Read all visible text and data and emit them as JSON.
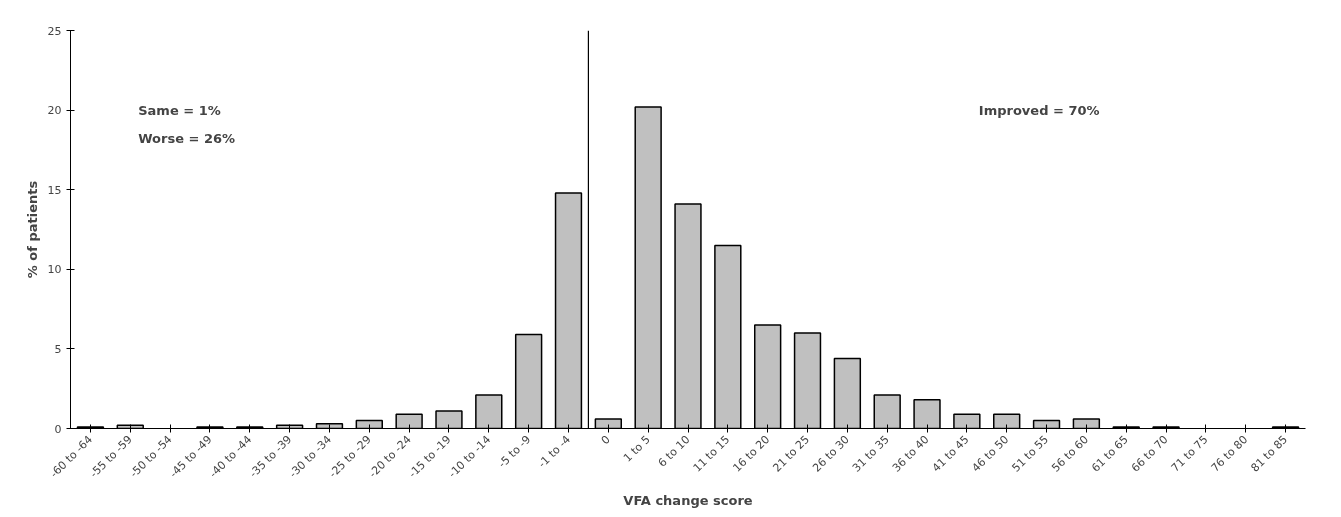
{
  "chart_data": {
    "type": "bar",
    "xlabel": "VFA change score",
    "ylabel": "% of patients",
    "categories": [
      "-60 to -64",
      "-55 to -59",
      "-50 to -54",
      "-45 to -49",
      "-40 to -44",
      "-35 to -39",
      "-30 to -34",
      "-25 to -29",
      "-20 to -24",
      "-15 to -19",
      "-10 to -14",
      "-5 to -9",
      "-1 to -4",
      "0",
      "1 to 5",
      "6 to 10",
      "11 to 15",
      "16 to 20",
      "21 to 25",
      "26 to 30",
      "31 to 35",
      "36 to 40",
      "41 to 45",
      "46 to 50",
      "51 to 55",
      "56 to 60",
      "61 to 65",
      "66 to 70",
      "71 to 75",
      "76 to 80",
      "81 to 85"
    ],
    "values": [
      0.1,
      0.2,
      0,
      0.1,
      0.1,
      0.2,
      0.3,
      0.5,
      0.9,
      1.1,
      2.1,
      5.9,
      14.8,
      0.6,
      20.2,
      14.1,
      11.5,
      6.5,
      6.0,
      4.4,
      2.1,
      1.8,
      0.9,
      0.9,
      0.5,
      0.6,
      0.1,
      0.1,
      0,
      0,
      0.1
    ],
    "color": "#c0c0c0",
    "ylim": [
      0,
      25
    ],
    "yticks": [
      0,
      5,
      10,
      15,
      20,
      25
    ],
    "grid": false,
    "ref_lines": [
      {
        "axis": "x",
        "value": "0",
        "color": "#000000"
      }
    ],
    "annotations": [
      "Same = 1%",
      "Worse = 26%",
      "Improved = 70%"
    ]
  }
}
